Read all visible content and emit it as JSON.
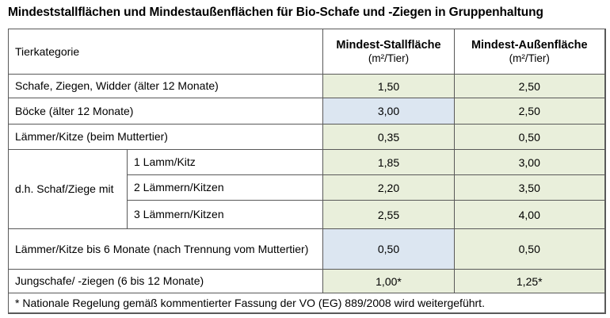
{
  "title": "Mindeststallflächen und Mindestaußenflächen für Bio-Schafe und -Ziegen in Gruppenhaltung",
  "colors": {
    "green_cell": "#e9efdb",
    "blue_cell": "#dce6f1",
    "border": "#595959",
    "text": "#000000"
  },
  "table": {
    "headers": {
      "category": "Tierkategorie",
      "stall": "Mindest-Stallfläche",
      "stall_unit": "(m²/Tier)",
      "outdoor": "Mindest-Außenfläche",
      "outdoor_unit": "(m²/Tier)"
    },
    "rows": [
      {
        "category": "Schafe, Ziegen, Widder (älter 12 Monate)",
        "stall": "1,50",
        "outdoor": "2,50",
        "stall_bg": "green",
        "outdoor_bg": "green"
      },
      {
        "category": "Böcke (älter 12 Monate)",
        "stall": "3,00",
        "outdoor": "2,50",
        "stall_bg": "blue",
        "outdoor_bg": "green"
      },
      {
        "category": "Lämmer/Kitze (beim Muttertier)",
        "stall": "0,35",
        "outdoor": "0,50",
        "stall_bg": "green",
        "outdoor_bg": "green"
      },
      {
        "category_prefix": "d.h. Schaf/Ziege mit",
        "category": "1 Lamm/Kitz",
        "stall": "1,85",
        "outdoor": "3,00",
        "stall_bg": "green",
        "outdoor_bg": "green"
      },
      {
        "category": "2 Lämmern/Kitzen",
        "stall": "2,20",
        "outdoor": "3,50",
        "stall_bg": "green",
        "outdoor_bg": "green"
      },
      {
        "category": "3 Lämmern/Kitzen",
        "stall": "2,55",
        "outdoor": "4,00",
        "stall_bg": "green",
        "outdoor_bg": "green"
      },
      {
        "category": "Lämmer/Kitze bis 6 Monate (nach Trennung vom Muttertier)",
        "stall": "0,50",
        "outdoor": "0,50",
        "stall_bg": "blue",
        "outdoor_bg": "green"
      },
      {
        "category": "Jungschafe/ -ziegen (6 bis 12 Monate)",
        "stall": "1,00*",
        "outdoor": "1,25*",
        "stall_bg": "green",
        "outdoor_bg": "green"
      }
    ],
    "footnote": "* Nationale Regelung gemäß kommentierter Fassung der VO (EG) 889/2008 wird weitergeführt."
  }
}
